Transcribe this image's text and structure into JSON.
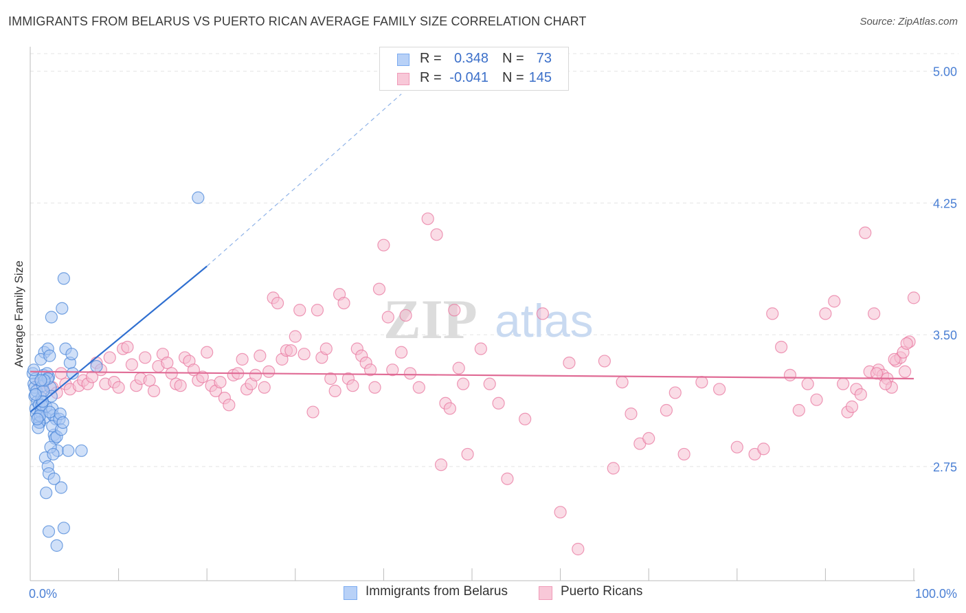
{
  "title": "IMMIGRANTS FROM BELARUS VS PUERTO RICAN AVERAGE FAMILY SIZE CORRELATION CHART",
  "source": "Source: ZipAtlas.com",
  "watermark": {
    "zip": "ZIP",
    "atlas": "atlas"
  },
  "stats": [
    {
      "r_label": "R =",
      "r_value": "0.348",
      "n_label": "N =",
      "n_value": "73",
      "color": "#7aaaf0",
      "fill": "#b8d1f7"
    },
    {
      "r_label": "R =",
      "r_value": "-0.041",
      "n_label": "N =",
      "n_value": "145",
      "color": "#f09ab8",
      "fill": "#f8c8d8"
    }
  ],
  "legend": [
    {
      "label": "Immigrants from Belarus",
      "color": "#7aaaf0",
      "fill": "#b8d1f7"
    },
    {
      "label": "Puerto Ricans",
      "color": "#f09ab8",
      "fill": "#f8c8d8"
    }
  ],
  "chart_data": {
    "type": "scatter",
    "xlabel": "",
    "ylabel": "Average Family Size",
    "xlim": [
      0,
      100
    ],
    "ylim": [
      2.1,
      5.1
    ],
    "x_tick_labels": [
      "0.0%",
      "100.0%"
    ],
    "y_ticks": [
      2.75,
      3.5,
      4.25,
      5.0
    ],
    "y_tick_labels": [
      "2.75",
      "3.50",
      "4.25",
      "5.00"
    ],
    "grid": true,
    "series": [
      {
        "name": "Immigrants from Belarus",
        "color": "#4a86d8",
        "fill": "#a9c7f2",
        "trend": {
          "x0": 0,
          "y0": 3.06,
          "x1": 20,
          "y1": 3.89,
          "dash_to_x": 42,
          "dash_to_y": 4.87
        },
        "points": [
          [
            0.3,
            3.28
          ],
          [
            0.4,
            3.22
          ],
          [
            0.5,
            3.15
          ],
          [
            0.6,
            3.08
          ],
          [
            0.7,
            3.05
          ],
          [
            0.5,
            3.2
          ],
          [
            0.8,
            3.12
          ],
          [
            0.9,
            3.03
          ],
          [
            0.6,
            3.25
          ],
          [
            0.7,
            3.18
          ],
          [
            1.0,
            3.1
          ],
          [
            1.1,
            3.0
          ],
          [
            1.2,
            3.06
          ],
          [
            1.3,
            3.14
          ],
          [
            1.4,
            3.21
          ],
          [
            1.5,
            3.27
          ],
          [
            1.6,
            3.4
          ],
          [
            1.7,
            3.03
          ],
          [
            1.8,
            3.09
          ],
          [
            1.2,
            3.36
          ],
          [
            2.0,
            3.42
          ],
          [
            2.1,
            3.26
          ],
          [
            2.2,
            3.38
          ],
          [
            2.3,
            3.2
          ],
          [
            2.4,
            3.15
          ],
          [
            2.5,
            3.08
          ],
          [
            2.6,
            3.04
          ],
          [
            2.7,
            2.93
          ],
          [
            2.8,
            2.91
          ],
          [
            2.9,
            3.02
          ],
          [
            1.9,
            3.28
          ],
          [
            2.0,
            3.25
          ],
          [
            1.5,
            3.18
          ],
          [
            1.0,
            3.0
          ],
          [
            0.9,
            2.97
          ],
          [
            1.1,
            3.04
          ],
          [
            1.3,
            3.1
          ],
          [
            1.6,
            3.24
          ],
          [
            2.2,
            3.06
          ],
          [
            2.5,
            2.98
          ],
          [
            3.0,
            2.92
          ],
          [
            3.1,
            2.84
          ],
          [
            3.3,
            3.02
          ],
          [
            3.4,
            3.05
          ],
          [
            3.5,
            2.96
          ],
          [
            3.7,
            3.0
          ],
          [
            3.8,
            3.82
          ],
          [
            4.0,
            3.42
          ],
          [
            4.3,
            2.84
          ],
          [
            4.5,
            3.34
          ],
          [
            4.7,
            3.39
          ],
          [
            4.8,
            3.28
          ],
          [
            3.6,
            3.65
          ],
          [
            2.4,
            3.6
          ],
          [
            1.7,
            2.8
          ],
          [
            2.0,
            2.75
          ],
          [
            2.3,
            2.86
          ],
          [
            2.6,
            2.82
          ],
          [
            2.1,
            2.71
          ],
          [
            3.5,
            2.63
          ],
          [
            2.7,
            2.68
          ],
          [
            1.8,
            2.6
          ],
          [
            2.1,
            2.38
          ],
          [
            3.0,
            2.3
          ],
          [
            3.8,
            2.4
          ],
          [
            5.8,
            2.84
          ],
          [
            7.5,
            3.32
          ],
          [
            19.0,
            4.28
          ],
          [
            0.4,
            3.3
          ],
          [
            0.8,
            3.02
          ],
          [
            1.2,
            3.24
          ],
          [
            1.4,
            3.12
          ],
          [
            0.6,
            3.16
          ]
        ]
      },
      {
        "name": "Puerto Ricans",
        "color": "#e8779f",
        "fill": "#f6bfd2",
        "trend": {
          "x0": 0,
          "y0": 3.29,
          "x1": 100,
          "y1": 3.25
        },
        "points": [
          [
            1.0,
            3.22
          ],
          [
            1.5,
            3.18
          ],
          [
            2.0,
            3.25
          ],
          [
            2.5,
            3.2
          ],
          [
            3.0,
            3.17
          ],
          [
            3.5,
            3.28
          ],
          [
            4.0,
            3.22
          ],
          [
            4.5,
            3.19
          ],
          [
            5.5,
            3.21
          ],
          [
            6.0,
            3.24
          ],
          [
            6.5,
            3.22
          ],
          [
            7.0,
            3.26
          ],
          [
            7.5,
            3.34
          ],
          [
            8.0,
            3.3
          ],
          [
            8.5,
            3.22
          ],
          [
            9.0,
            3.37
          ],
          [
            9.5,
            3.23
          ],
          [
            10.0,
            3.2
          ],
          [
            10.5,
            3.42
          ],
          [
            11.0,
            3.43
          ],
          [
            11.5,
            3.33
          ],
          [
            12.0,
            3.21
          ],
          [
            12.5,
            3.25
          ],
          [
            13.0,
            3.37
          ],
          [
            13.5,
            3.24
          ],
          [
            14.0,
            3.18
          ],
          [
            14.5,
            3.32
          ],
          [
            15.0,
            3.39
          ],
          [
            15.5,
            3.34
          ],
          [
            16.0,
            3.28
          ],
          [
            16.5,
            3.22
          ],
          [
            17.0,
            3.21
          ],
          [
            17.5,
            3.37
          ],
          [
            18.0,
            3.35
          ],
          [
            18.5,
            3.3
          ],
          [
            19.0,
            3.24
          ],
          [
            19.5,
            3.26
          ],
          [
            20.0,
            3.4
          ],
          [
            20.5,
            3.21
          ],
          [
            21.0,
            3.18
          ],
          [
            21.5,
            3.23
          ],
          [
            22.0,
            3.14
          ],
          [
            22.5,
            3.1
          ],
          [
            23.0,
            3.27
          ],
          [
            23.5,
            3.28
          ],
          [
            24.0,
            3.36
          ],
          [
            24.5,
            3.19
          ],
          [
            25.0,
            3.22
          ],
          [
            25.5,
            3.27
          ],
          [
            26.0,
            3.38
          ],
          [
            26.5,
            3.2
          ],
          [
            27.0,
            3.29
          ],
          [
            27.5,
            3.71
          ],
          [
            28.0,
            3.68
          ],
          [
            28.5,
            3.36
          ],
          [
            29.0,
            3.41
          ],
          [
            29.5,
            3.41
          ],
          [
            30.0,
            3.49
          ],
          [
            30.5,
            3.64
          ],
          [
            31.0,
            3.39
          ],
          [
            32.0,
            3.06
          ],
          [
            32.5,
            3.64
          ],
          [
            33.0,
            3.37
          ],
          [
            33.5,
            3.42
          ],
          [
            34.0,
            3.25
          ],
          [
            34.5,
            3.18
          ],
          [
            35.0,
            3.73
          ],
          [
            35.5,
            3.68
          ],
          [
            36.0,
            3.25
          ],
          [
            36.5,
            3.21
          ],
          [
            37.0,
            3.42
          ],
          [
            37.5,
            3.38
          ],
          [
            38.0,
            3.34
          ],
          [
            38.5,
            3.3
          ],
          [
            39.0,
            3.2
          ],
          [
            39.5,
            3.76
          ],
          [
            40.0,
            4.01
          ],
          [
            40.5,
            3.6
          ],
          [
            41.0,
            3.3
          ],
          [
            42.0,
            3.4
          ],
          [
            42.5,
            3.61
          ],
          [
            43.0,
            3.28
          ],
          [
            44.0,
            3.2
          ],
          [
            45.0,
            4.16
          ],
          [
            46.0,
            4.07
          ],
          [
            46.5,
            2.76
          ],
          [
            47.0,
            3.11
          ],
          [
            47.5,
            3.08
          ],
          [
            48.0,
            3.64
          ],
          [
            48.5,
            3.31
          ],
          [
            49.0,
            3.22
          ],
          [
            49.5,
            2.82
          ],
          [
            51.0,
            3.42
          ],
          [
            52.0,
            3.22
          ],
          [
            53.0,
            3.11
          ],
          [
            54.0,
            2.68
          ],
          [
            56.0,
            3.02
          ],
          [
            58.0,
            3.62
          ],
          [
            60.0,
            2.49
          ],
          [
            61.0,
            3.34
          ],
          [
            62.0,
            2.28
          ],
          [
            65.0,
            3.35
          ],
          [
            66.0,
            2.74
          ],
          [
            67.0,
            3.23
          ],
          [
            68.0,
            3.05
          ],
          [
            69.0,
            2.88
          ],
          [
            70.0,
            2.91
          ],
          [
            72.0,
            3.07
          ],
          [
            73.0,
            3.17
          ],
          [
            74.0,
            2.82
          ],
          [
            76.0,
            3.23
          ],
          [
            78.0,
            3.19
          ],
          [
            80.0,
            2.86
          ],
          [
            82.0,
            2.82
          ],
          [
            83.0,
            2.85
          ],
          [
            84.0,
            3.62
          ],
          [
            85.0,
            3.43
          ],
          [
            86.0,
            3.27
          ],
          [
            87.0,
            3.07
          ],
          [
            88.0,
            3.22
          ],
          [
            89.0,
            3.13
          ],
          [
            90.0,
            3.62
          ],
          [
            91.0,
            3.69
          ],
          [
            92.0,
            3.22
          ],
          [
            92.5,
            3.06
          ],
          [
            93.0,
            3.09
          ],
          [
            93.5,
            3.19
          ],
          [
            94.0,
            3.16
          ],
          [
            94.5,
            4.08
          ],
          [
            95.0,
            3.29
          ],
          [
            95.5,
            3.62
          ],
          [
            96.0,
            3.3
          ],
          [
            96.5,
            3.27
          ],
          [
            97.0,
            3.25
          ],
          [
            97.5,
            3.2
          ],
          [
            98.0,
            3.35
          ],
          [
            98.5,
            3.37
          ],
          [
            99.0,
            3.29
          ],
          [
            99.5,
            3.46
          ],
          [
            100.0,
            3.71
          ],
          [
            96.8,
            3.22
          ],
          [
            97.8,
            3.36
          ],
          [
            98.8,
            3.4
          ],
          [
            99.2,
            3.45
          ],
          [
            95.8,
            3.28
          ]
        ]
      }
    ]
  }
}
